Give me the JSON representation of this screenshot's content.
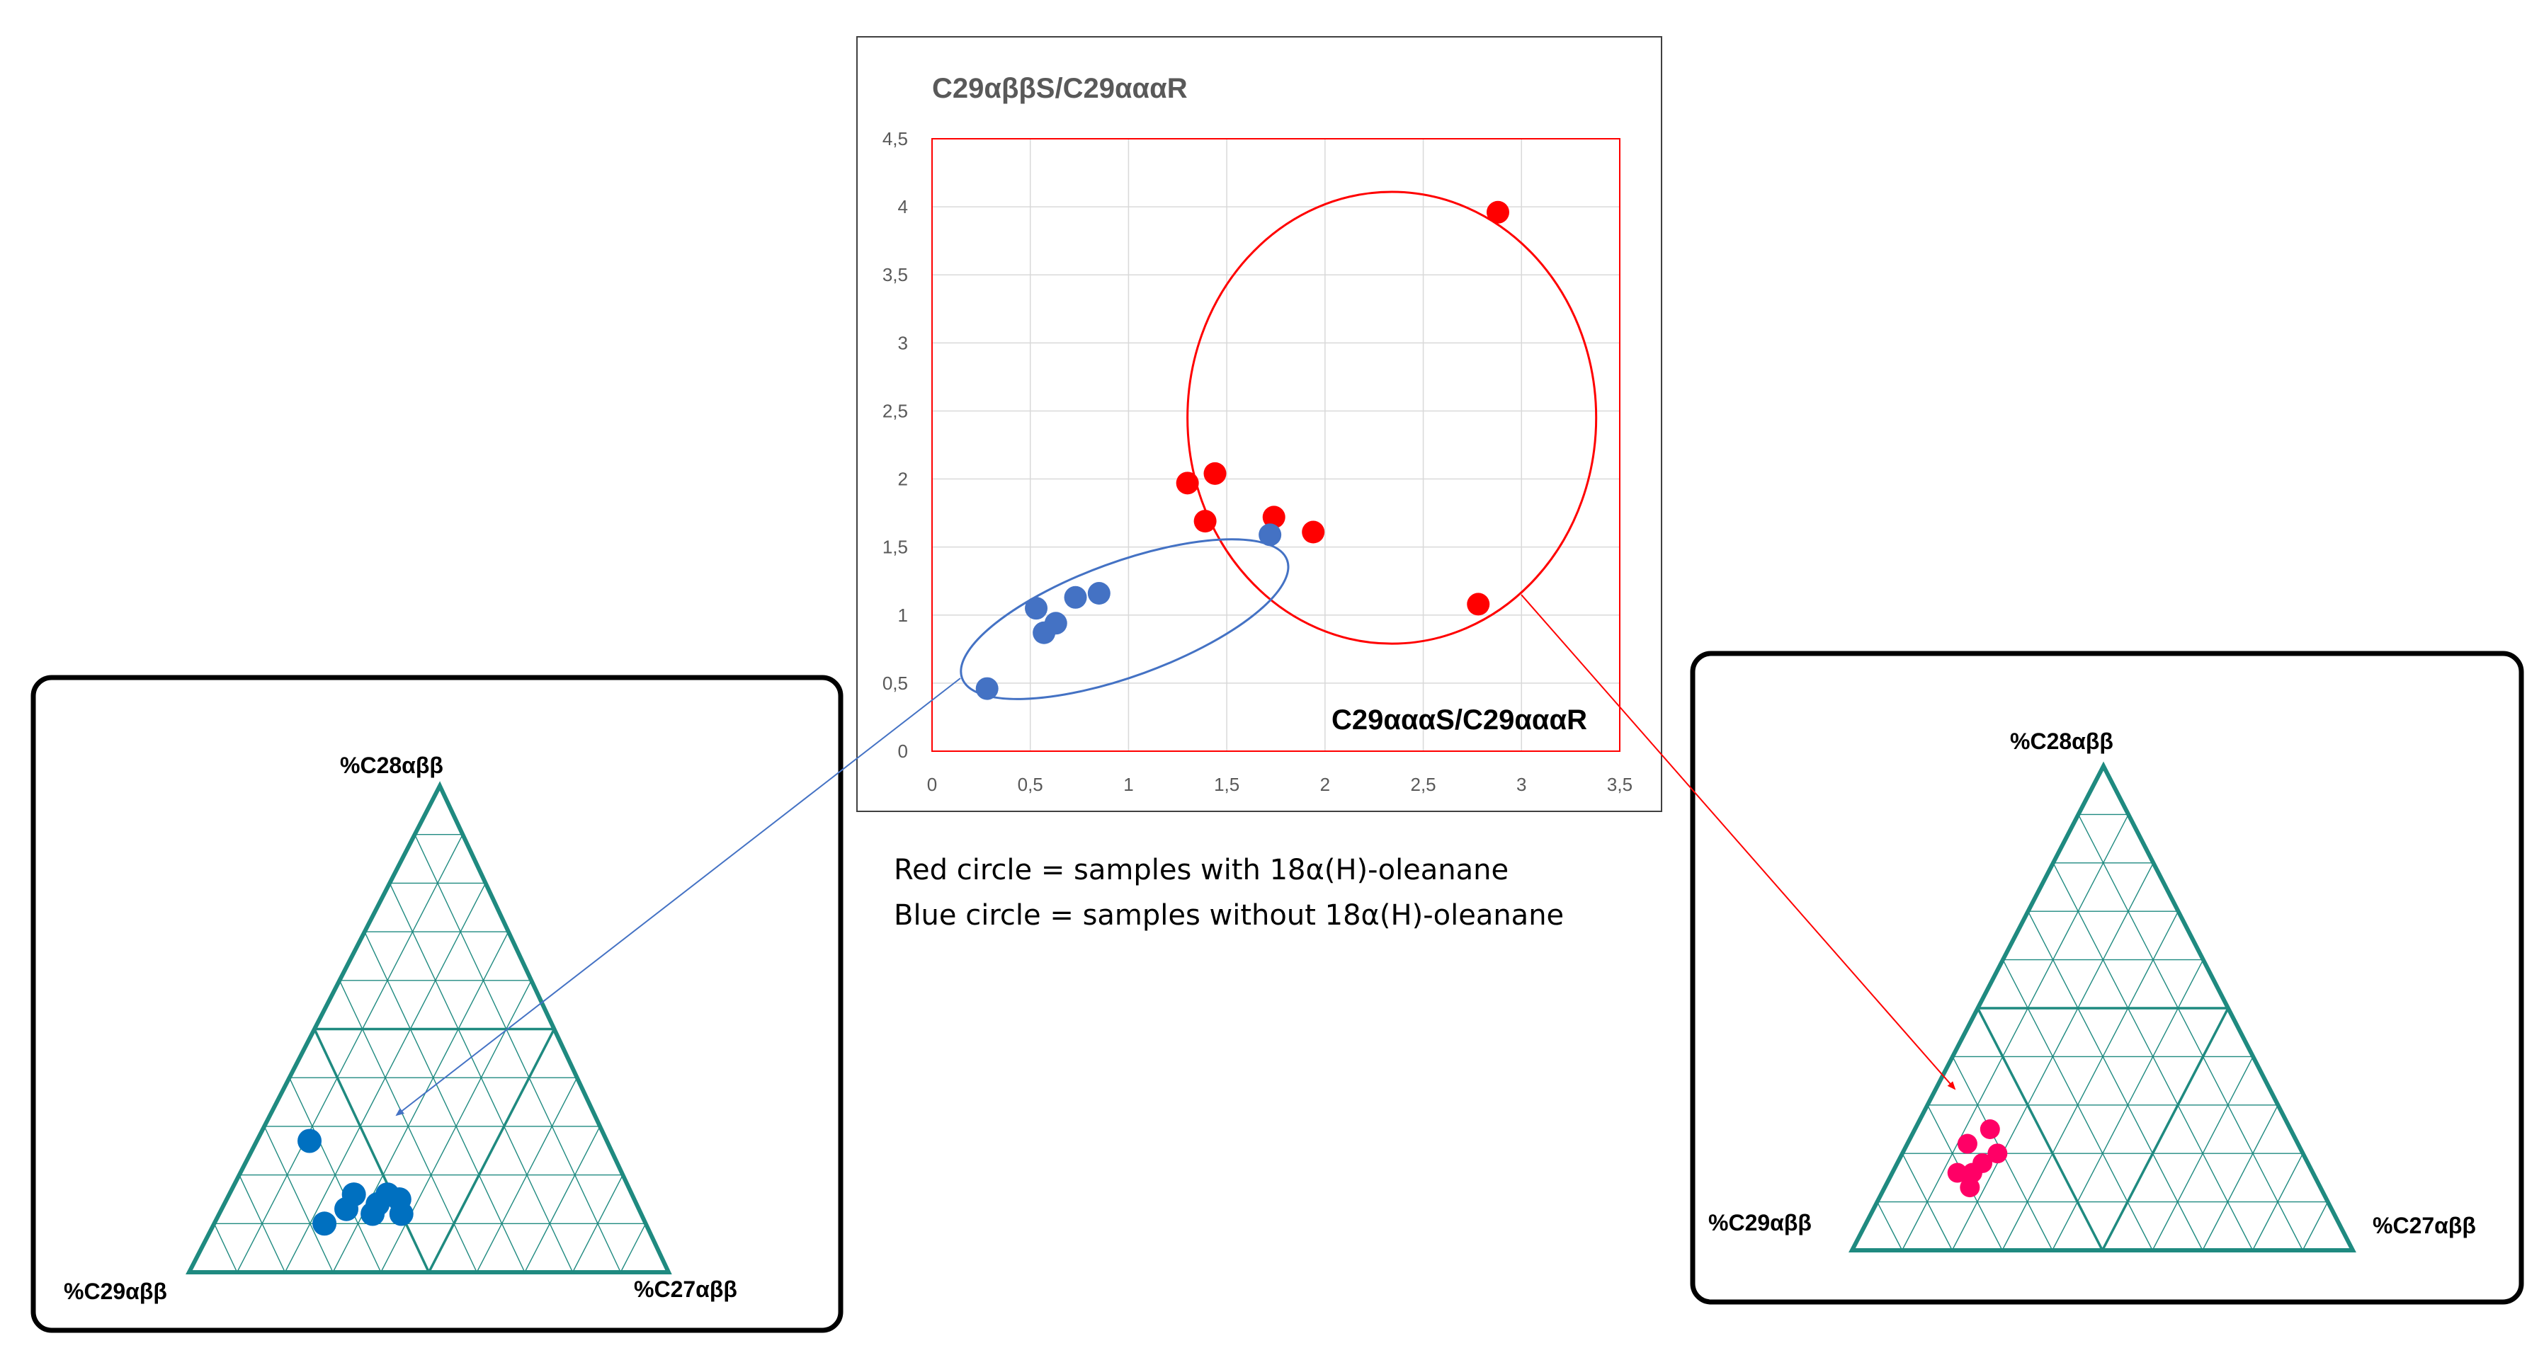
{
  "scatter": {
    "title": "C29αββS/C29αααR",
    "xlabel": "C29αααS/C29αααR",
    "x_tick_labels": [
      "0",
      "0,5",
      "1",
      "1,5",
      "2",
      "2,5",
      "3",
      "3,5"
    ],
    "y_tick_labels": [
      "0",
      "0,5",
      "1",
      "1,5",
      "2",
      "2,5",
      "3",
      "3,5",
      "4",
      "4,5"
    ],
    "colors": {
      "red": "#ff0000",
      "blue": "#4472c4",
      "grid": "#d9d9d9",
      "title": "#595959"
    }
  },
  "notes": {
    "red": "Red circle = samples with 18α(H)-oleanane",
    "blue": "Blue circle = samples without 18α(H)-oleanane"
  },
  "ternary_left": {
    "top_label": "%C28αββ",
    "left_label": "%C29αββ",
    "right_label": "%C27αββ",
    "point_color": "#0070c0",
    "line_color": "#1f8a80",
    "points": [
      {
        "c29": 0.62,
        "c28": 0.27,
        "c27": 0.11
      },
      {
        "c29": 0.51,
        "c28": 0.16,
        "c27": 0.33
      },
      {
        "c29": 0.58,
        "c28": 0.16,
        "c27": 0.26
      },
      {
        "c29": 0.61,
        "c28": 0.13,
        "c27": 0.26
      },
      {
        "c29": 0.56,
        "c28": 0.12,
        "c27": 0.32
      },
      {
        "c29": 0.5,
        "c28": 0.12,
        "c27": 0.38
      },
      {
        "c29": 0.54,
        "c28": 0.14,
        "c27": 0.32
      },
      {
        "c29": 0.49,
        "c28": 0.15,
        "c27": 0.36
      },
      {
        "c29": 0.67,
        "c28": 0.1,
        "c27": 0.23
      }
    ]
  },
  "ternary_right": {
    "top_label": "%C28αββ",
    "left_label": "%C29αββ",
    "right_label": "%C27αββ",
    "point_color": "#ff0066",
    "line_color": "#1f8a80",
    "points": [
      {
        "c29": 0.66,
        "c28": 0.22,
        "c27": 0.12
      },
      {
        "c29": 0.61,
        "c28": 0.2,
        "c27": 0.19
      },
      {
        "c29": 0.65,
        "c28": 0.18,
        "c27": 0.17
      },
      {
        "c29": 0.6,
        "c28": 0.25,
        "c27": 0.15
      },
      {
        "c29": 0.68,
        "c28": 0.16,
        "c27": 0.16
      },
      {
        "c29": 0.71,
        "c28": 0.16,
        "c27": 0.13
      },
      {
        "c29": 0.7,
        "c28": 0.13,
        "c27": 0.17
      }
    ]
  },
  "chart_data": [
    {
      "type": "scatter",
      "title": "C29αββS/C29αααR",
      "xlabel": "C29αααS/C29αααR",
      "ylabel": "",
      "xlim": [
        0,
        3.5
      ],
      "ylim": [
        0,
        4.5
      ],
      "grid": true,
      "series": [
        {
          "color": "#ff0000",
          "points": [
            [
              2.88,
              3.96
            ],
            [
              1.3,
              1.97
            ],
            [
              1.44,
              2.04
            ],
            [
              1.39,
              1.69
            ],
            [
              1.74,
              1.72
            ],
            [
              1.94,
              1.61
            ],
            [
              2.78,
              1.08
            ]
          ]
        },
        {
          "color": "#4472c4",
          "points": [
            [
              0.28,
              0.46
            ],
            [
              0.53,
              1.05
            ],
            [
              0.57,
              0.87
            ],
            [
              0.63,
              0.94
            ],
            [
              0.73,
              1.13
            ],
            [
              0.85,
              1.16
            ],
            [
              1.72,
              1.59
            ]
          ]
        }
      ],
      "annotations": [
        {
          "shape": "ellipse",
          "color": "#ff0000",
          "center": [
            2.34,
            2.45
          ],
          "radii": [
            1.04,
            1.66
          ]
        },
        {
          "shape": "ellipse",
          "color": "#4472c4",
          "center": [
            0.98,
            0.97
          ],
          "radii": [
            0.88,
            0.42
          ],
          "rotation_deg": -20
        }
      ]
    },
    {
      "type": "scatter",
      "subtype": "ternary",
      "axes": [
        "%C28αββ",
        "%C29αββ",
        "%C27αββ"
      ],
      "series": [
        {
          "color": "#0070c0",
          "ref": "ternary_left.points"
        }
      ]
    },
    {
      "type": "scatter",
      "subtype": "ternary",
      "axes": [
        "%C28αββ",
        "%C29αββ",
        "%C27αββ"
      ],
      "series": [
        {
          "color": "#ff0066",
          "ref": "ternary_right.points"
        }
      ]
    }
  ]
}
